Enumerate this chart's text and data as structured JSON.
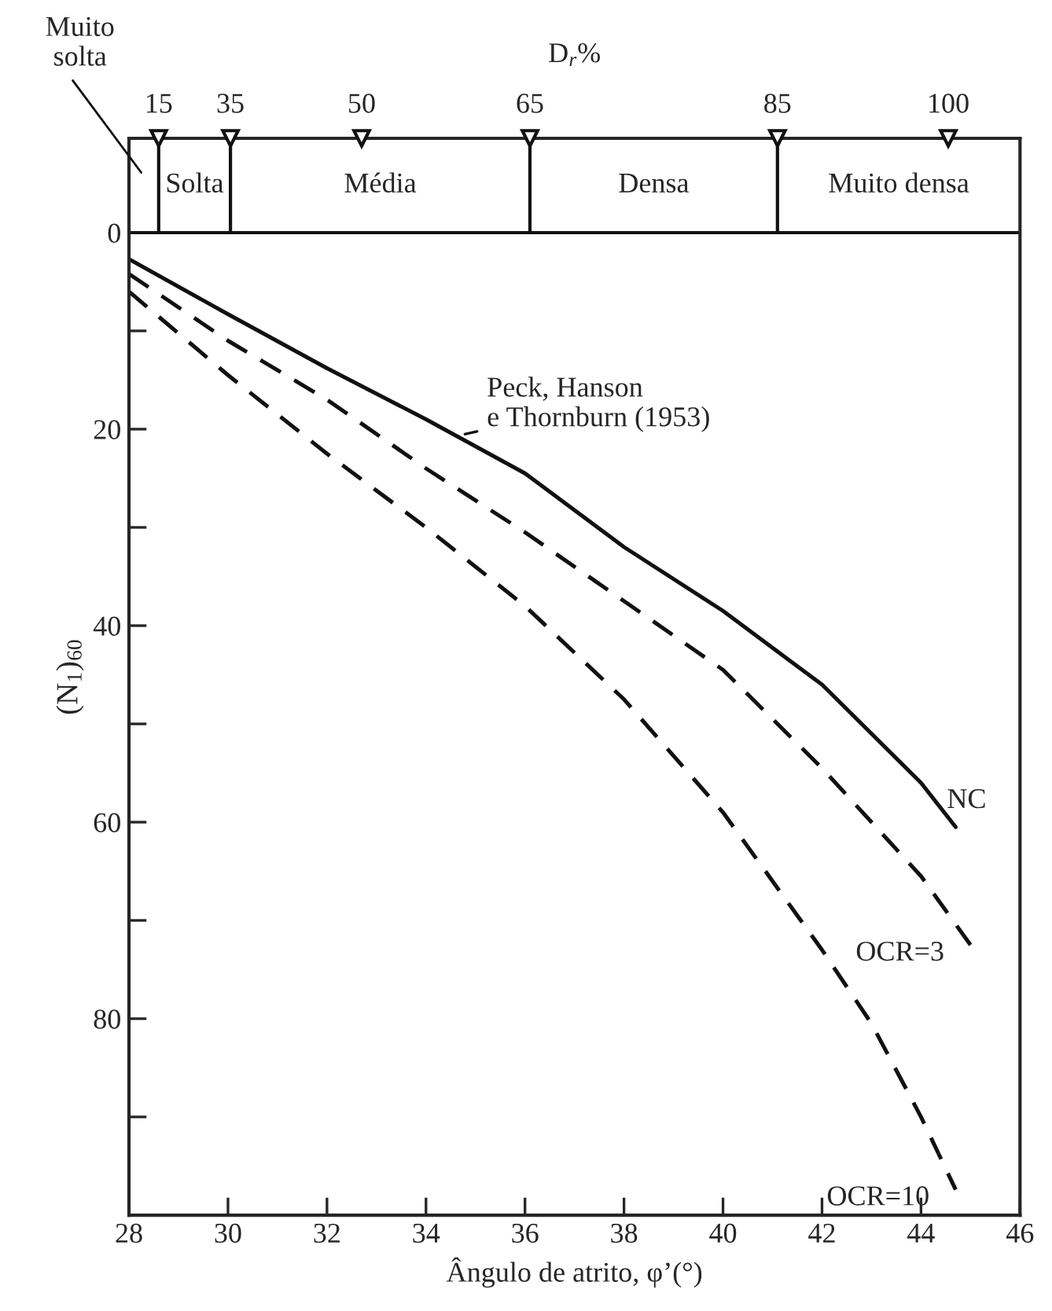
{
  "chart_data": {
    "type": "line",
    "xlabel": "Ângulo de atrito, φ’(°)",
    "ylabel": "(N$_{1}$)$_{60}$",
    "xlim": [
      28,
      46
    ],
    "xticks": [
      28,
      30,
      32,
      34,
      36,
      38,
      40,
      42,
      44,
      46
    ],
    "ylim": [
      100,
      -9.6
    ],
    "yticks": [
      0,
      {
        "value": 10,
        "label": null
      },
      20,
      {
        "value": 30,
        "label": null
      },
      40,
      {
        "value": 50,
        "label": null
      },
      60,
      {
        "value": 70,
        "label": null
      },
      80,
      {
        "value": 90,
        "label": null
      }
    ],
    "series": [
      {
        "name": "NC",
        "color": "#111111",
        "line_style": "solid",
        "x": [
          28,
          30,
          32,
          34,
          36,
          38,
          40,
          42,
          44,
          44.7
        ],
        "values": [
          2.7,
          8.3,
          13.8,
          19,
          24.5,
          32,
          38.5,
          46,
          56,
          60.5
        ]
      },
      {
        "name": "OCR=3",
        "color": "#111111",
        "line_style": "dashed",
        "x": [
          28,
          30,
          32,
          34,
          36,
          38,
          40,
          42,
          44,
          45
        ],
        "values": [
          4.2,
          11,
          17,
          24,
          30.5,
          37.5,
          44.5,
          54.5,
          65.5,
          72.5
        ]
      },
      {
        "name": "OCR=10",
        "color": "#111111",
        "line_style": "dashed",
        "x": [
          28,
          30,
          32,
          34,
          36,
          38,
          40,
          42,
          43,
          44,
          44.7
        ],
        "values": [
          6,
          14.5,
          22.5,
          30,
          38,
          47.5,
          59,
          73,
          80.5,
          90,
          97.4
        ]
      }
    ],
    "annotations": [
      {
        "text": "Peck, Hanson\ne Thornburn (1953)",
        "x": 34.7,
        "y": 20.6
      },
      "D$_{r}$%",
      {
        "text": "15",
        "x": 28.6,
        "y": -9.6
      },
      {
        "text": "35",
        "x": 30.05,
        "y": -9.6
      },
      {
        "text": "50",
        "x": 32.7,
        "y": -9.6
      },
      {
        "text": "65",
        "x": 36.1,
        "y": -9.6
      },
      {
        "text": "85",
        "x": 41.1,
        "y": -9.6
      },
      {
        "text": "100",
        "x": 44.55,
        "y": -9.6
      },
      "Muito\nsolta",
      "Solta",
      "Média",
      "Densa",
      "Muito densa"
    ],
    "ref_lines": [
      {
        "axis": "y",
        "value": 0
      }
    ],
    "grid": false,
    "legend": false
  }
}
